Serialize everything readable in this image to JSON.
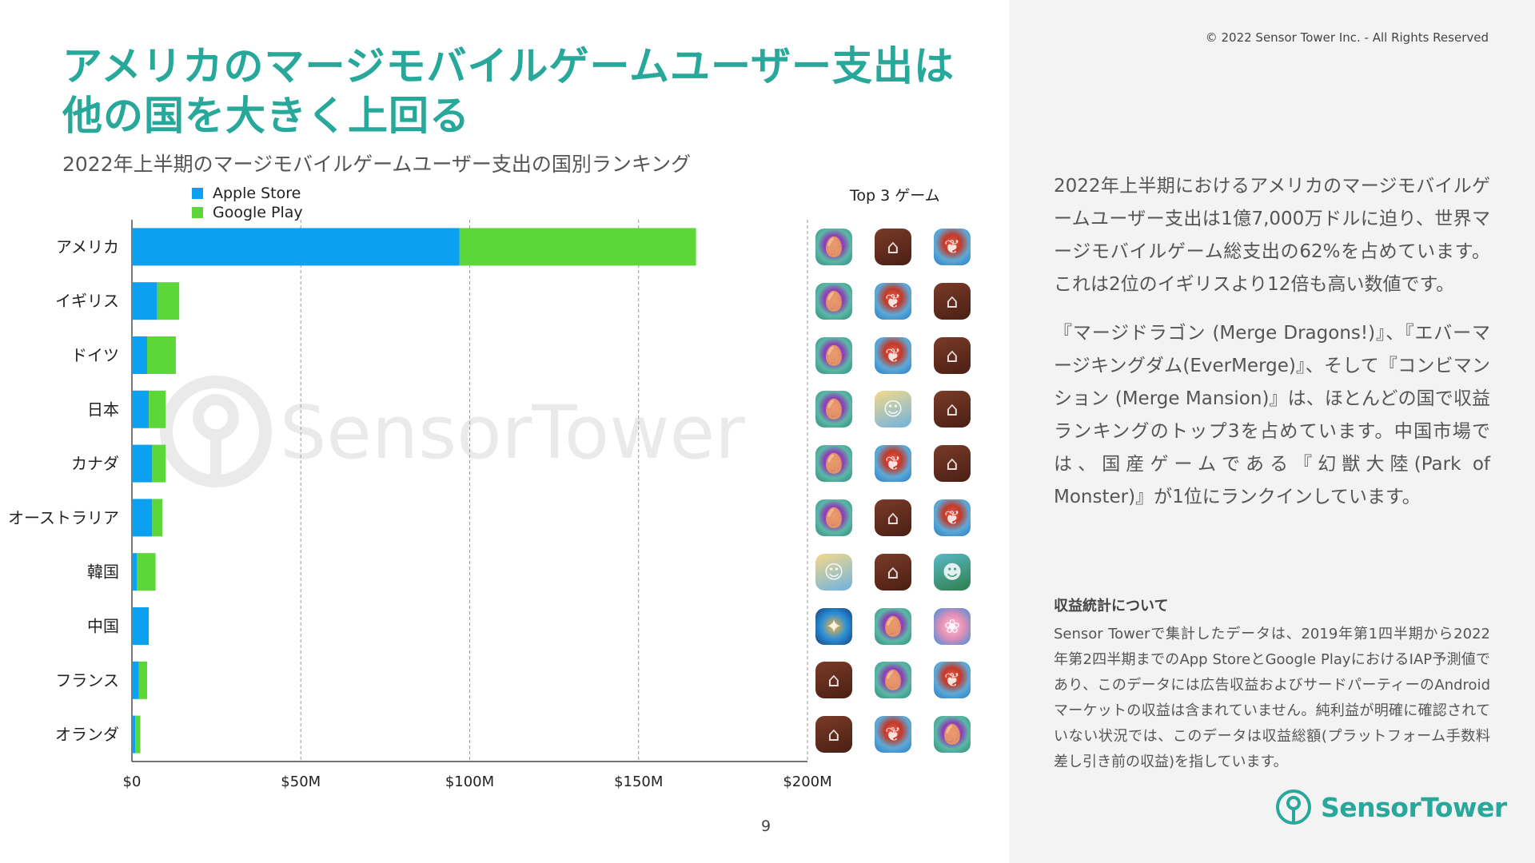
{
  "title": "アメリカのマージモバイルゲームユーザー支出は他の国を大きく上回る",
  "subtitle": "2022年上半期のマージモバイルゲームユーザー支出の国別ランキング",
  "legend": {
    "apple": "Apple Store",
    "google": "Google Play"
  },
  "top3_header": "Top 3 ゲーム",
  "watermark": "SensorTower",
  "page_number": "9",
  "copyright": "© 2022 Sensor Tower Inc. - All Rights Reserved",
  "colors": {
    "apple": "#0ba0f0",
    "google": "#5dd63a",
    "accent": "#27a89b"
  },
  "chart_data": {
    "type": "bar",
    "orientation": "horizontal",
    "stacked": true,
    "categories": [
      "アメリカ",
      "イギリス",
      "ドイツ",
      "日本",
      "カナダ",
      "オーストラリア",
      "韓国",
      "中国",
      "フランス",
      "オランダ"
    ],
    "series": [
      {
        "name": "Apple Store",
        "values": [
          97,
          7.5,
          4.5,
          5,
          6,
          6,
          1.5,
          5,
          2,
          1
        ]
      },
      {
        "name": "Google Play",
        "values": [
          70,
          6.5,
          8.5,
          5,
          4,
          3,
          5.5,
          0,
          2.5,
          1.5
        ]
      }
    ],
    "xlim": [
      0,
      200
    ],
    "x_ticks": [
      "$0",
      "$50M",
      "$100M",
      "$150M",
      "$200M"
    ],
    "x_tick_values": [
      0,
      50,
      100,
      150,
      200
    ],
    "grid": "vertical dashed",
    "legend_position": "top-left"
  },
  "top3_games": [
    [
      "merge-dragons-icon",
      "merge-mansion-icon",
      "evermerge-icon"
    ],
    [
      "merge-dragons-icon",
      "evermerge-icon",
      "merge-mansion-icon"
    ],
    [
      "merge-dragons-icon",
      "evermerge-icon",
      "merge-mansion-icon"
    ],
    [
      "merge-dragons-icon",
      "wonderland-icon",
      "merge-mansion-icon"
    ],
    [
      "merge-dragons-icon",
      "evermerge-icon",
      "merge-mansion-icon"
    ],
    [
      "merge-dragons-icon",
      "merge-mansion-icon",
      "evermerge-icon"
    ],
    [
      "wonderland-icon",
      "merge-mansion-icon",
      "merge-adventure-icon"
    ],
    [
      "park-of-monster-icon",
      "merge-dragons-icon",
      "cute-pig-icon"
    ],
    [
      "merge-mansion-icon",
      "merge-dragons-icon",
      "evermerge-icon"
    ],
    [
      "merge-mansion-icon",
      "evermerge-icon",
      "merge-dragons-icon"
    ]
  ],
  "body": {
    "p1": "2022年上半期におけるアメリカのマージモバイルゲームユーザー支出は1億7,000万ドルに迫り、世界マージモバイルゲーム総支出の62%を占めています。これは2位のイギリスより12倍も高い数値です。",
    "p2": "『マージドラゴン (Merge Dragons!)』、『エバーマージキングダム(EverMerge)』、そして『コンビマンション (Merge Mansion)』は、ほとんどの国で収益ランキングのトップ3を占めています。中国市場では、国産ゲームである『幻獣大陸(Park of Monster)』が1位にランクインしています。"
  },
  "note": {
    "heading": "収益統計について",
    "text": "Sensor Towerで集計したデータは、2019年第1四半期から2022年第2四半期までのApp StoreとGoogle PlayにおけるIAP予測値であり、このデータには広告収益およびサードパーティーのAndroidマーケットの収益は含まれていません。純利益が明確に確認されていない状況では、このデータは収益総額(プラットフォーム手数料差し引き前の収益)を指しています。"
  },
  "brand": {
    "name": "SensorTower"
  }
}
